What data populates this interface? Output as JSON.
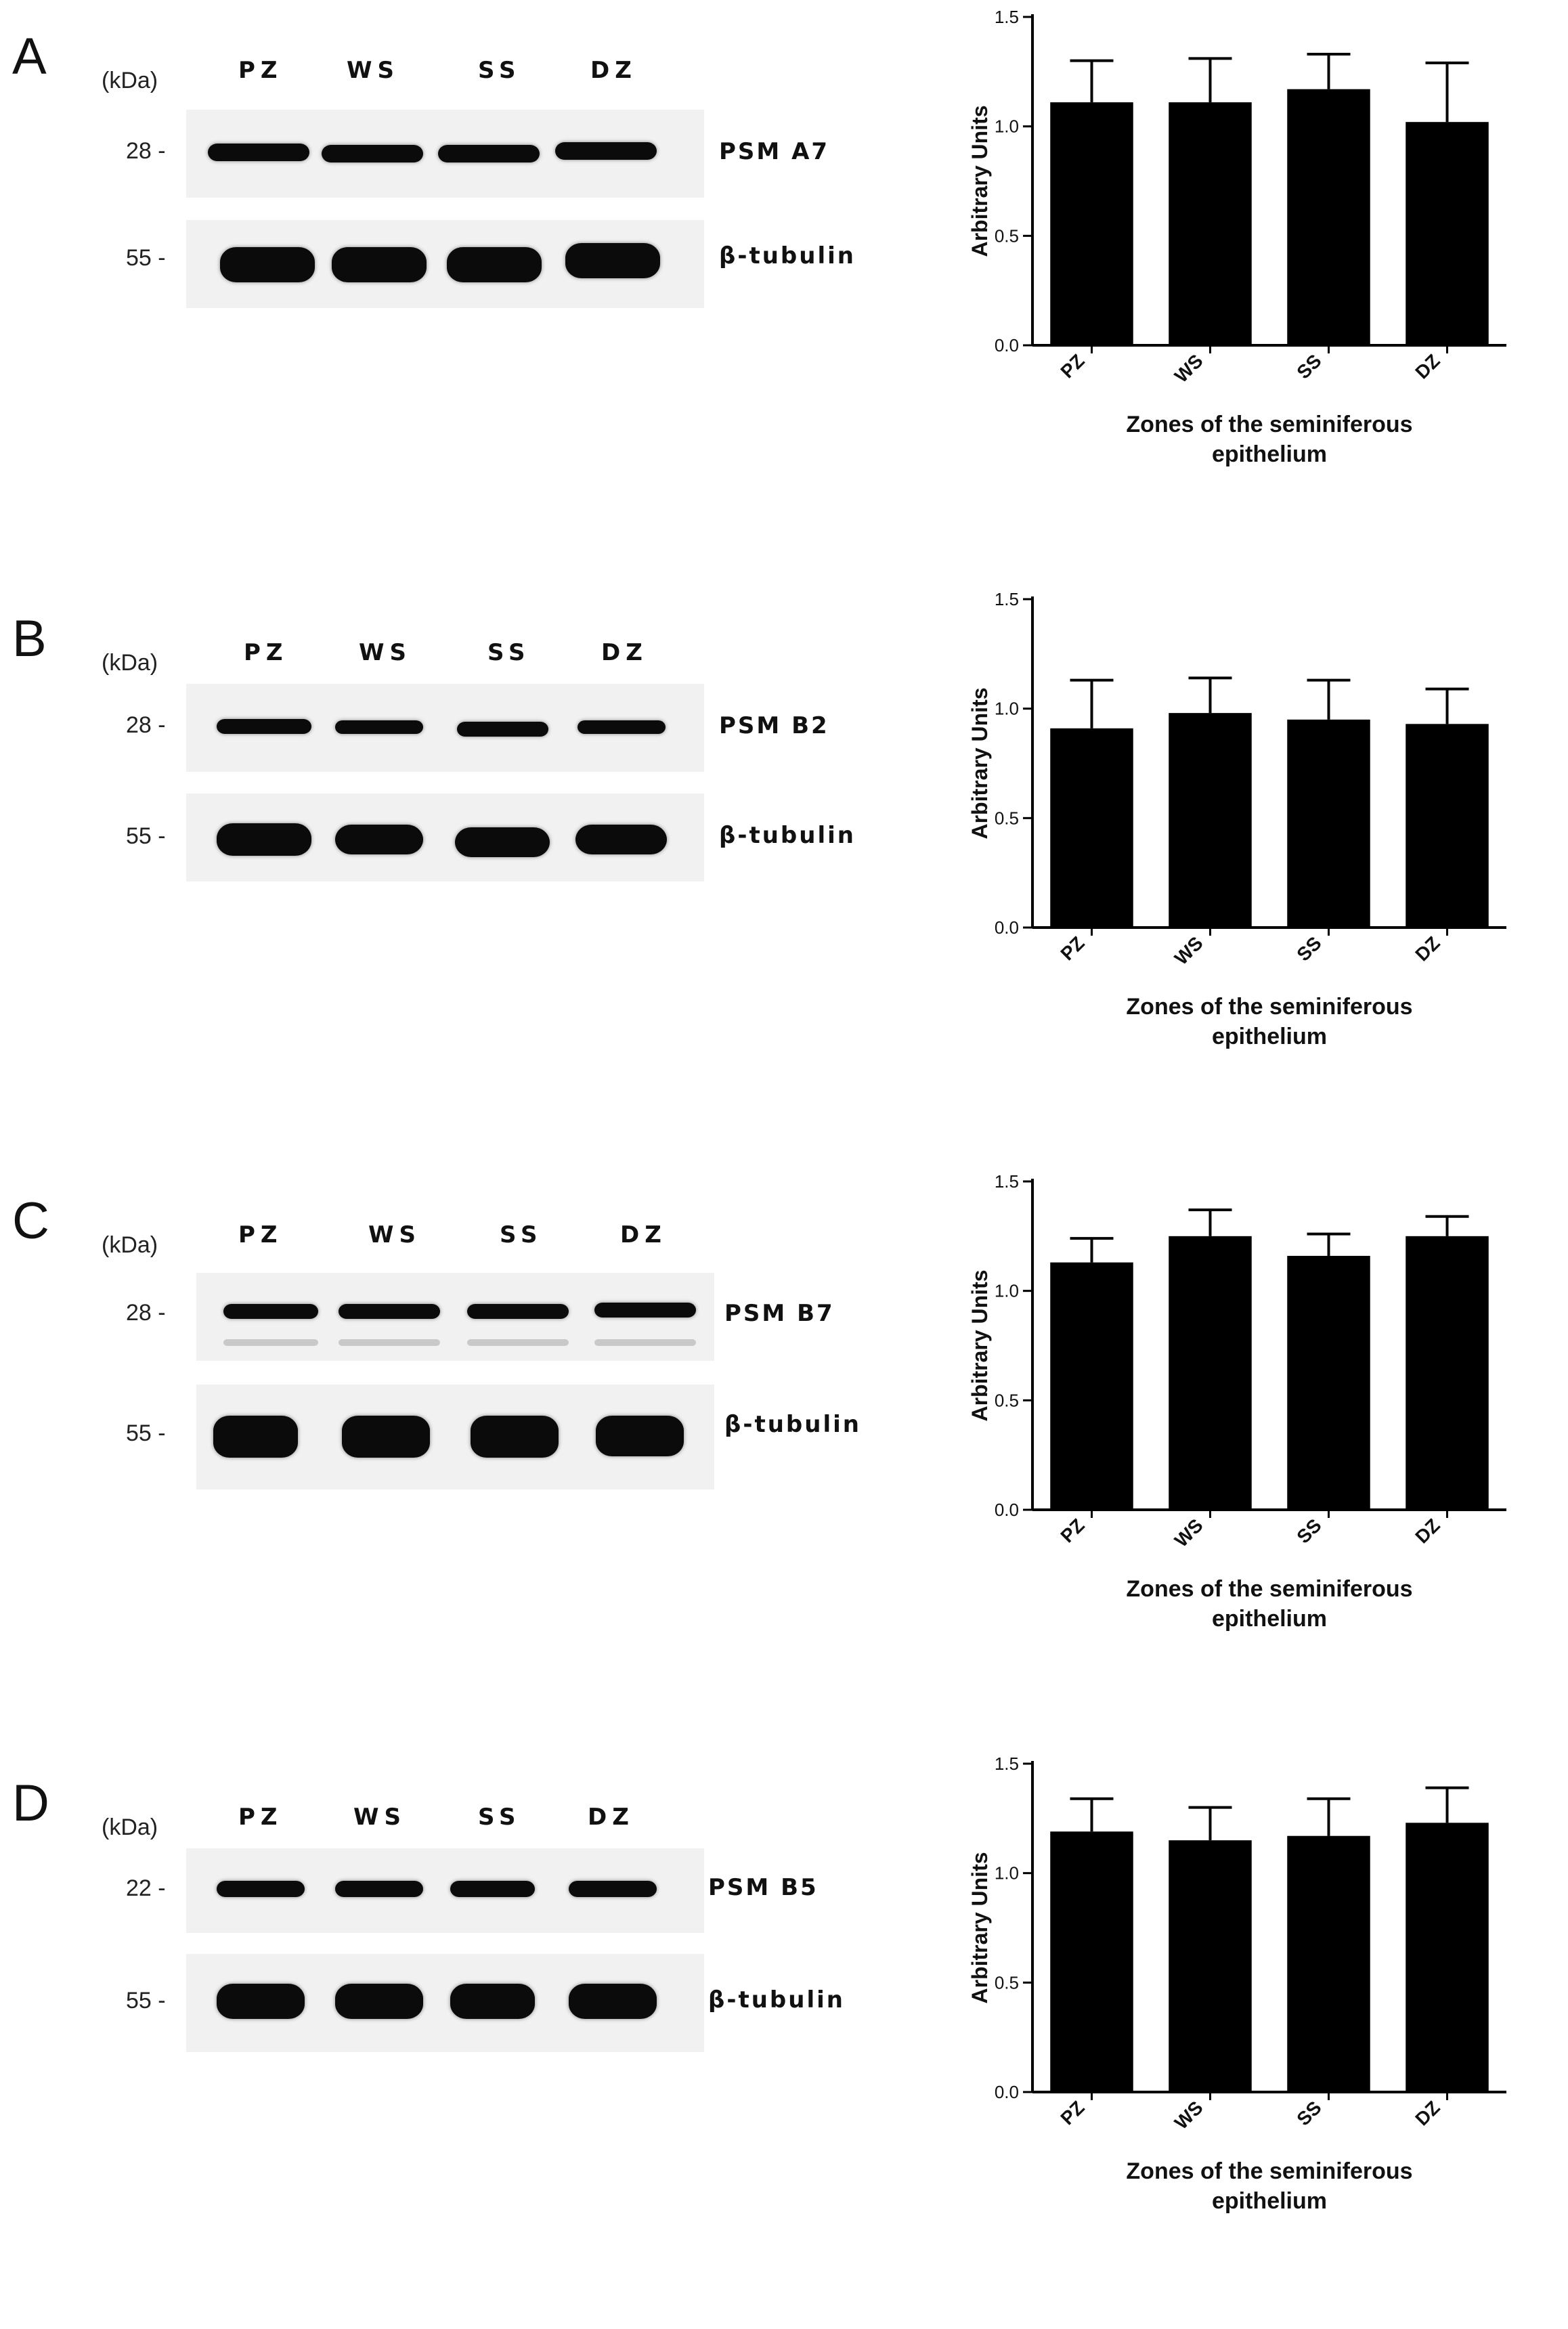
{
  "figure": {
    "panels": [
      {
        "letter": "A",
        "kda_label": "(kDa)",
        "lanes": [
          "PZ",
          "WS",
          "SS",
          "DZ"
        ],
        "rows": [
          {
            "mw": "28 -",
            "protein": "PSM A7"
          },
          {
            "mw": "55 -",
            "protein": "β-tubulin"
          }
        ]
      },
      {
        "letter": "B",
        "kda_label": "(kDa)",
        "lanes": [
          "PZ",
          "WS",
          "SS",
          "DZ"
        ],
        "rows": [
          {
            "mw": "28 -",
            "protein": "PSM B2"
          },
          {
            "mw": "55 -",
            "protein": "β-tubulin"
          }
        ]
      },
      {
        "letter": "C",
        "kda_label": "(kDa)",
        "lanes": [
          "PZ",
          "WS",
          "SS",
          "DZ"
        ],
        "rows": [
          {
            "mw": "28 -",
            "protein": "PSM B7"
          },
          {
            "mw": "55 -",
            "protein": "β-tubulin"
          }
        ]
      },
      {
        "letter": "D",
        "kda_label": "(kDa)",
        "lanes": [
          "PZ",
          "WS",
          "SS",
          "DZ"
        ],
        "rows": [
          {
            "mw": "22 -",
            "protein": "PSM B5"
          },
          {
            "mw": "55 -",
            "protein": "β-tubulin"
          }
        ]
      }
    ]
  },
  "chart_data": [
    {
      "type": "bar",
      "categories": [
        "PZ",
        "WS",
        "SS",
        "DZ"
      ],
      "values": [
        1.11,
        1.11,
        1.17,
        1.02
      ],
      "errors": [
        0.19,
        0.2,
        0.16,
        0.27
      ],
      "ylabel": "Arbitrary Units",
      "xlabel": [
        "Zones of the seminiferous",
        "epithelium"
      ],
      "ylim": [
        0,
        1.5
      ],
      "yticks": [
        "0.0",
        "0.5",
        "1.0",
        "1.5"
      ],
      "bar_color": "#000000"
    },
    {
      "type": "bar",
      "categories": [
        "PZ",
        "WS",
        "SS",
        "DZ"
      ],
      "values": [
        0.91,
        0.98,
        0.95,
        0.93
      ],
      "errors": [
        0.22,
        0.16,
        0.18,
        0.16
      ],
      "ylabel": "Arbitrary Units",
      "xlabel": [
        "Zones of the seminiferous",
        "epithelium"
      ],
      "ylim": [
        0,
        1.5
      ],
      "yticks": [
        "0.0",
        "0.5",
        "1.0",
        "1.5"
      ],
      "bar_color": "#000000"
    },
    {
      "type": "bar",
      "categories": [
        "PZ",
        "WS",
        "SS",
        "DZ"
      ],
      "values": [
        1.13,
        1.25,
        1.16,
        1.25
      ],
      "errors": [
        0.11,
        0.12,
        0.1,
        0.09
      ],
      "ylabel": "Arbitrary Units",
      "xlabel": [
        "Zones of the seminiferous",
        "epithelium"
      ],
      "ylim": [
        0,
        1.5
      ],
      "yticks": [
        "0.0",
        "0.5",
        "1.0",
        "1.5"
      ],
      "bar_color": "#000000"
    },
    {
      "type": "bar",
      "categories": [
        "PZ",
        "WS",
        "SS",
        "DZ"
      ],
      "values": [
        1.19,
        1.15,
        1.17,
        1.23
      ],
      "errors": [
        0.15,
        0.15,
        0.17,
        0.16
      ],
      "ylabel": "Arbitrary Units",
      "xlabel": [
        "Zones of the seminiferous",
        "epithelium"
      ],
      "ylim": [
        0,
        1.5
      ],
      "yticks": [
        "0.0",
        "0.5",
        "1.0",
        "1.5"
      ],
      "bar_color": "#000000"
    }
  ]
}
